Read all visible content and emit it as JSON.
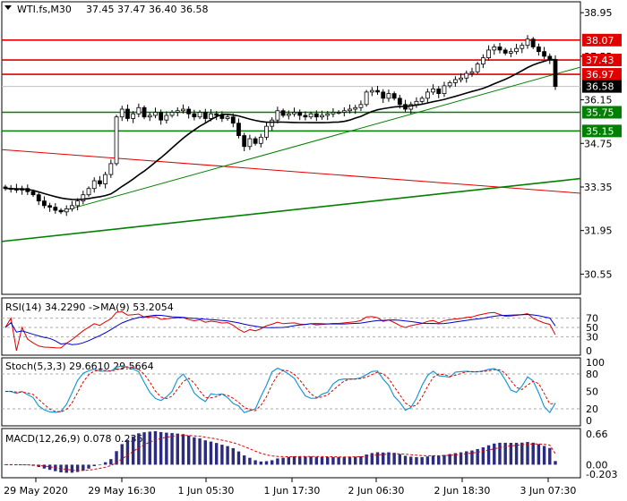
{
  "header": {
    "symbol": "WTI.fs,M30",
    "ohlc": "37.45 37.47 36.40 36.58"
  },
  "chart_data": {
    "type": "candlestick",
    "title": "WTI.fs,M30 37.45 37.47 36.40 36.58",
    "x_labels": [
      "29 May 2020",
      "29 May 16:30",
      "1 Jun 05:30",
      "1 Jun 17:30",
      "2 Jun 06:30",
      "2 Jun 18:30",
      "3 Jun 07:30"
    ],
    "price_axis": {
      "ticks": [
        "38.95",
        "37.55",
        "36.15",
        "34.75",
        "33.35",
        "31.95",
        "30.55"
      ],
      "ylim": [
        29.9,
        39.3
      ]
    },
    "levels": [
      {
        "label": "38.07",
        "value": 38.07,
        "color": "#e00000"
      },
      {
        "label": "37.43",
        "value": 37.43,
        "color": "#e00000"
      },
      {
        "label": "36.97",
        "value": 36.97,
        "color": "#e00000"
      },
      {
        "label": "36.58",
        "value": 36.58,
        "color": "#000000"
      },
      {
        "label": "35.75",
        "value": 35.75,
        "color": "#008000"
      },
      {
        "label": "35.15",
        "value": 35.15,
        "color": "#008000"
      }
    ],
    "trendlines": [
      {
        "color": "#e00000",
        "start": [
          0,
          34.55
        ],
        "end": [
          1,
          33.15
        ]
      },
      {
        "color": "#008000",
        "start": [
          0,
          31.6
        ],
        "end": [
          1,
          33.62
        ]
      },
      {
        "color": "#008000",
        "start": [
          0.1,
          32.55
        ],
        "end": [
          1,
          37.2
        ]
      }
    ],
    "ma_period": 20,
    "closes": [
      33.3,
      33.3,
      33.25,
      33.3,
      33.2,
      33.1,
      32.9,
      32.75,
      32.7,
      32.6,
      32.55,
      32.65,
      32.75,
      32.9,
      33.1,
      33.3,
      33.55,
      33.45,
      33.75,
      34.1,
      35.6,
      35.85,
      35.55,
      35.7,
      35.9,
      35.6,
      35.65,
      35.75,
      35.5,
      35.65,
      35.75,
      35.8,
      35.85,
      35.7,
      35.6,
      35.75,
      35.55,
      35.7,
      35.65,
      35.55,
      35.6,
      35.4,
      35.0,
      34.65,
      34.9,
      34.75,
      34.95,
      35.3,
      35.5,
      35.8,
      35.65,
      35.7,
      35.75,
      35.65,
      35.6,
      35.7,
      35.6,
      35.65,
      35.7,
      35.75,
      35.75,
      35.8,
      35.85,
      35.9,
      36.0,
      36.4,
      36.45,
      36.4,
      36.2,
      36.35,
      36.2,
      36.0,
      35.85,
      36.0,
      36.1,
      36.2,
      36.4,
      36.5,
      36.35,
      36.6,
      36.7,
      36.8,
      36.85,
      37.0,
      37.05,
      37.3,
      37.5,
      37.75,
      37.85,
      37.75,
      37.65,
      37.7,
      37.8,
      37.9,
      38.1,
      37.85,
      37.7,
      37.55,
      37.45,
      36.58
    ],
    "rsi": {
      "label": "RSI(14) 34.2290 ->MA(9) 53.2054",
      "period": 14,
      "ma_period": 9,
      "value": 34.229,
      "ma": 53.2054,
      "ticks": [
        "70",
        "50",
        "30",
        "0"
      ],
      "levels": [
        70,
        50,
        30
      ]
    },
    "stoch": {
      "label": "Stoch(5,3,3) 29.6610 29.5664",
      "k": 29.661,
      "d": 29.5664,
      "ticks": [
        "100",
        "80",
        "50",
        "20",
        "0"
      ],
      "levels": [
        80,
        20
      ]
    },
    "macd": {
      "label": "MACD(12,26,9) 0.078 0.236",
      "macd": 0.078,
      "signal": 0.236,
      "ticks": [
        "0.66",
        "0.00",
        "-0.203"
      ]
    }
  }
}
